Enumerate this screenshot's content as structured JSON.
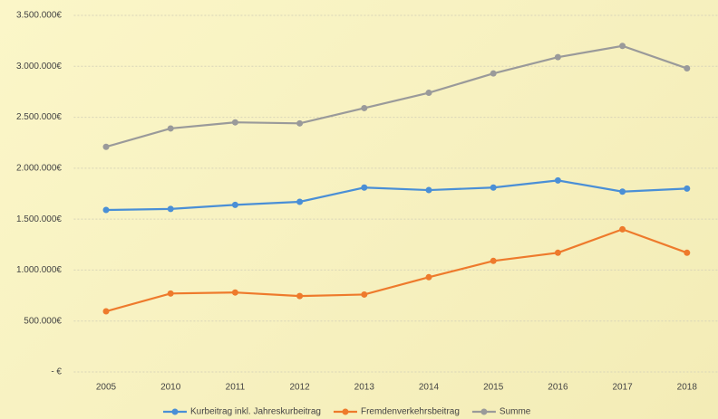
{
  "chart_data": {
    "type": "line",
    "categories": [
      "2005",
      "2010",
      "2011",
      "2012",
      "2013",
      "2014",
      "2015",
      "2016",
      "2017",
      "2018"
    ],
    "series": [
      {
        "name": "Kurbeitrag inkl. Jahreskurbeitrag",
        "color": "#4a8fd6",
        "values": [
          1590000,
          1600000,
          1640000,
          1670000,
          1810000,
          1785000,
          1810000,
          1880000,
          1770000,
          1800000
        ]
      },
      {
        "name": "Fremdenverkehrsbeitrag",
        "color": "#ee7a2c",
        "values": [
          595000,
          770000,
          780000,
          745000,
          760000,
          930000,
          1090000,
          1170000,
          1400000,
          1170000
        ]
      },
      {
        "name": "Summe",
        "color": "#9a9a9a",
        "values": [
          2210000,
          2390000,
          2450000,
          2440000,
          2590000,
          2740000,
          2930000,
          3090000,
          3200000,
          2980000
        ]
      }
    ],
    "ylim": [
      0,
      3500000
    ],
    "yticks": [
      {
        "value": 0,
        "label": "- €"
      },
      {
        "value": 500000,
        "label": "500.000€"
      },
      {
        "value": 1000000,
        "label": "1.000.000€"
      },
      {
        "value": 1500000,
        "label": "1.500.000€"
      },
      {
        "value": 2000000,
        "label": "2.000.000€"
      },
      {
        "value": 2500000,
        "label": "2.500.000€"
      },
      {
        "value": 3000000,
        "label": "3.000.000€"
      },
      {
        "value": 3500000,
        "label": "3.500.000€"
      }
    ],
    "grid": true,
    "legend": "bottom"
  }
}
